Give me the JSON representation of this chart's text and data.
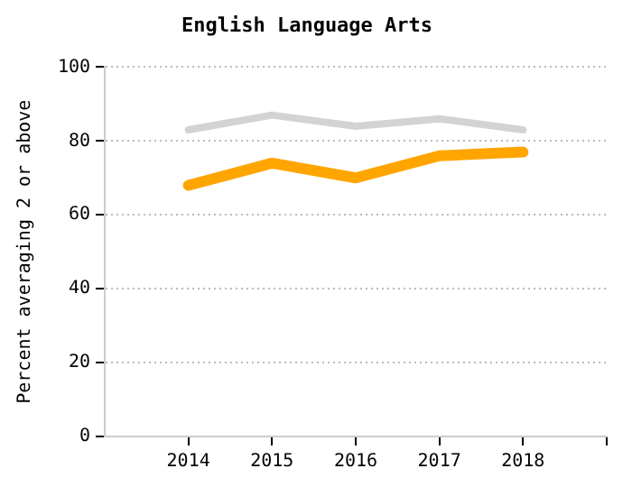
{
  "chart_data": {
    "type": "line",
    "title": "English Language Arts",
    "ylabel": "Percent averaging 2 or above",
    "x": [
      2014,
      2015,
      2016,
      2017,
      2018
    ],
    "series": [
      {
        "color": "#d3d3d3",
        "values": [
          83,
          87,
          84,
          86,
          83
        ]
      },
      {
        "color": "#ffa500",
        "values": [
          68,
          74,
          70,
          76,
          77
        ]
      }
    ],
    "xlim": [
      2013,
      2019
    ],
    "xticks": [
      2014,
      2015,
      2016,
      2017,
      2018,
      {
        "value": 2019,
        "label": null
      }
    ],
    "ylim": [
      0,
      100
    ],
    "yticks": [
      0,
      20,
      40,
      60,
      80,
      100
    ],
    "grid": "y",
    "legend": false,
    "marker": "none",
    "line_style": "solid"
  }
}
